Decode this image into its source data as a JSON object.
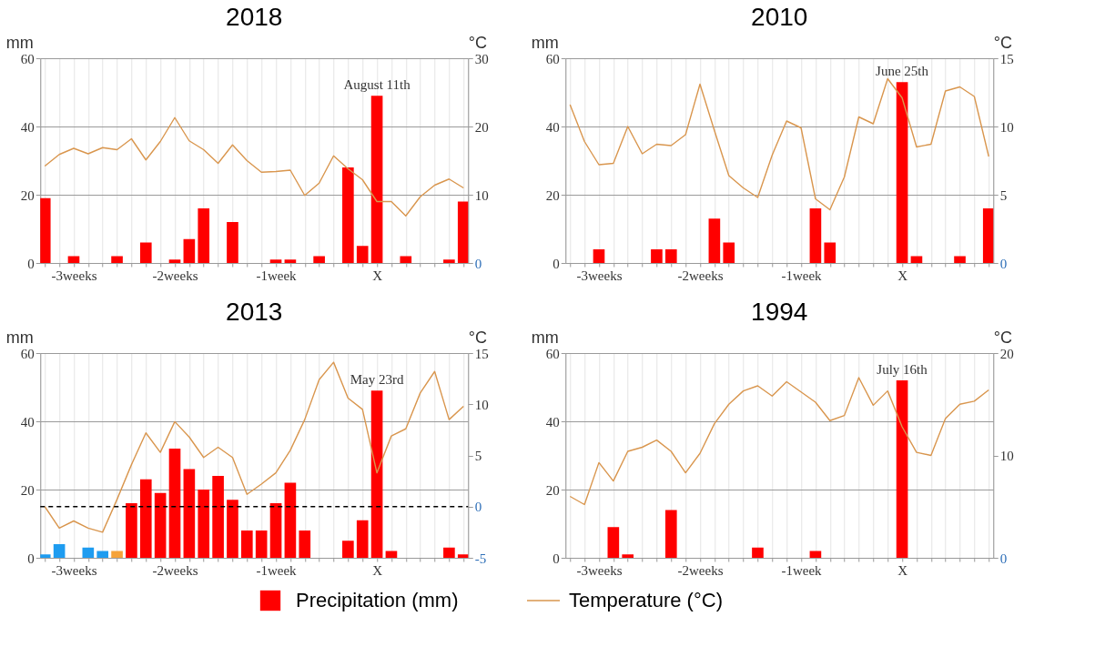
{
  "chart_data": [
    {
      "type": "bar",
      "title": "2018",
      "ylabel": "mm",
      "y2label": "°C",
      "grid": true,
      "legend": "bottom",
      "categories": [
        null,
        null,
        "-3weeks",
        null,
        null,
        null,
        null,
        null,
        null,
        "-2weeks",
        null,
        null,
        null,
        null,
        null,
        null,
        "-1week",
        null,
        null,
        null,
        null,
        null,
        null,
        "X",
        null,
        null,
        null,
        null,
        null,
        null
      ],
      "ylim": [
        0,
        60
      ],
      "yticks": [
        0,
        20,
        40,
        60
      ],
      "y2lim": [
        0,
        30
      ],
      "y2ticks": [
        0,
        10,
        20,
        30
      ],
      "annotations": [
        {
          "text": "August 11th",
          "x": "X",
          "y": 49
        }
      ],
      "series": [
        {
          "name": "Precipitation (mm)",
          "color": "#ff0000",
          "values": [
            19,
            0,
            2,
            0,
            0,
            2,
            0,
            6,
            0,
            1,
            7,
            16,
            0,
            12,
            0,
            0,
            1,
            1,
            0,
            2,
            0,
            28,
            5,
            49,
            0,
            2,
            0,
            0,
            1,
            18
          ]
        },
        {
          "name": "Temperature (°C)",
          "type": "line",
          "axis": "y2",
          "color": "#d9964e",
          "values": [
            14.2,
            15.9,
            16.8,
            16.0,
            16.9,
            16.6,
            18.2,
            15.1,
            17.8,
            21.3,
            17.9,
            16.6,
            14.6,
            17.3,
            15.0,
            13.3,
            13.4,
            13.6,
            9.9,
            11.7,
            15.7,
            13.8,
            12.2,
            9.0,
            9.0,
            6.9,
            9.7,
            11.4,
            12.3,
            11.0
          ]
        }
      ]
    },
    {
      "type": "bar",
      "title": "2010",
      "ylabel": "mm",
      "y2label": "°C",
      "grid": true,
      "categories": [
        null,
        null,
        "-3weeks",
        null,
        null,
        null,
        null,
        null,
        null,
        "-2weeks",
        null,
        null,
        null,
        null,
        null,
        null,
        "-1week",
        null,
        null,
        null,
        null,
        null,
        null,
        "X",
        null,
        null,
        null,
        null,
        null,
        null
      ],
      "ylim": [
        0,
        60
      ],
      "yticks": [
        0,
        20,
        40,
        60
      ],
      "y2lim": [
        0,
        15
      ],
      "y2ticks": [
        0,
        5,
        10,
        15
      ],
      "annotations": [
        {
          "text": "June 25th",
          "x": "X",
          "y": 53
        }
      ],
      "series": [
        {
          "color": "#ff0000",
          "values": [
            0,
            0,
            4,
            0,
            0,
            0,
            4,
            4,
            0,
            0,
            13,
            6,
            0,
            0,
            0,
            0,
            0,
            16,
            6,
            0,
            0,
            0,
            0,
            53,
            2,
            0,
            0,
            2,
            0,
            16
          ]
        },
        {
          "type": "line",
          "axis": "y2",
          "color": "#d9964e",
          "values": [
            11.6,
            8.9,
            7.2,
            7.3,
            10.0,
            8.0,
            8.7,
            8.6,
            9.4,
            13.1,
            9.7,
            6.4,
            5.5,
            4.8,
            7.9,
            10.4,
            9.9,
            4.7,
            3.9,
            6.3,
            10.7,
            10.2,
            13.5,
            12.1,
            8.5,
            8.7,
            12.6,
            12.9,
            12.2,
            7.8
          ]
        }
      ]
    },
    {
      "type": "bar",
      "title": "2013",
      "ylabel": "mm",
      "y2label": "°C",
      "grid": true,
      "categories": [
        null,
        null,
        "-3weeks",
        null,
        null,
        null,
        null,
        null,
        null,
        "-2weeks",
        null,
        null,
        null,
        null,
        null,
        null,
        "-1week",
        null,
        null,
        null,
        null,
        null,
        null,
        "X",
        null,
        null,
        null,
        null,
        null,
        null
      ],
      "ylim": [
        0,
        60
      ],
      "yticks": [
        0,
        20,
        40,
        60
      ],
      "y2lim": [
        -5,
        15
      ],
      "y2ticks": [
        -5,
        0,
        5,
        10,
        15
      ],
      "ref_lines": [
        {
          "axis": "y2",
          "value": 0,
          "color": "#000000",
          "line_style": "dashed"
        }
      ],
      "annotations": [
        {
          "text": "May 23rd",
          "x": "X",
          "y": 49
        }
      ],
      "series": [
        {
          "colors": [
            "#1e9cf0",
            "#1e9cf0",
            "#1e9cf0",
            "#1e9cf0",
            "#1e9cf0",
            "#f5a33a",
            "#ff0000",
            "#ff0000",
            "#ff0000",
            "#ff0000",
            "#ff0000",
            "#ff0000",
            "#ff0000",
            "#ff0000",
            "#ff0000",
            "#ff0000",
            "#ff0000",
            "#ff0000",
            "#ff0000",
            "#ff0000",
            "#ff0000",
            "#ff0000",
            "#ff0000",
            "#ff0000",
            "#ff0000",
            "#ff0000",
            "#ff0000",
            "#ff0000",
            "#ff0000",
            "#ff0000"
          ],
          "values": [
            1,
            4,
            0,
            3,
            2,
            2,
            16,
            23,
            19,
            32,
            26,
            20,
            24,
            17,
            8,
            8,
            16,
            22,
            8,
            0,
            0,
            5,
            11,
            49,
            2,
            0,
            0,
            0,
            3,
            1
          ]
        },
        {
          "type": "line",
          "axis": "y2",
          "color": "#d9964e",
          "values": [
            0.0,
            -2.1,
            -1.4,
            -2.1,
            -2.5,
            0.7,
            4.1,
            7.2,
            5.3,
            8.3,
            6.8,
            4.8,
            5.8,
            4.8,
            1.2,
            2.2,
            3.3,
            5.5,
            8.5,
            12.4,
            14.1,
            10.6,
            9.5,
            3.3,
            6.9,
            7.6,
            11.1,
            13.2,
            8.5,
            9.8
          ]
        }
      ]
    },
    {
      "type": "bar",
      "title": "1994",
      "ylabel": "mm",
      "y2label": "°C",
      "grid": true,
      "categories": [
        null,
        null,
        "-3weeks",
        null,
        null,
        null,
        null,
        null,
        null,
        "-2weeks",
        null,
        null,
        null,
        null,
        null,
        null,
        "-1week",
        null,
        null,
        null,
        null,
        null,
        null,
        "X",
        null,
        null,
        null,
        null,
        null,
        null
      ],
      "ylim": [
        0,
        60
      ],
      "yticks": [
        0,
        20,
        40,
        60
      ],
      "y2lim": [
        0,
        20
      ],
      "y2ticks": [
        0,
        10,
        20
      ],
      "annotations": [
        {
          "text": "July 16th",
          "x": "X",
          "y": 52
        }
      ],
      "series": [
        {
          "color": "#ff0000",
          "values": [
            0,
            0,
            0,
            9,
            1,
            0,
            0,
            14,
            0,
            0,
            0,
            0,
            0,
            3,
            0,
            0,
            0,
            2,
            0,
            0,
            0,
            0,
            0,
            52,
            0,
            0,
            0,
            0,
            0,
            0
          ]
        },
        {
          "type": "line",
          "axis": "y2",
          "color": "#d9964e",
          "values": [
            6.0,
            5.2,
            9.3,
            7.5,
            10.4,
            10.8,
            11.5,
            10.4,
            8.3,
            10.2,
            13.1,
            15.0,
            16.3,
            16.8,
            15.8,
            17.2,
            16.2,
            15.2,
            13.4,
            13.9,
            17.6,
            14.9,
            16.3,
            12.8,
            10.3,
            10.0,
            13.6,
            15.0,
            15.3,
            16.4
          ]
        }
      ]
    }
  ]
}
